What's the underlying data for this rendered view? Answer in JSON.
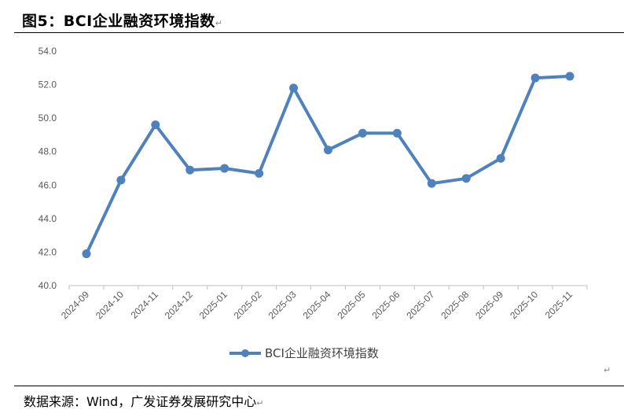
{
  "figure": {
    "title": "图5：BCI企业融资环境指数",
    "source": "数据来源：Wind，广发证券发展研究中心"
  },
  "chart_data": {
    "type": "line",
    "title": "",
    "xlabel": "",
    "ylabel": "",
    "categories": [
      "2024-09",
      "2024-10",
      "2024-11",
      "2024-12",
      "2025-01",
      "2025-02",
      "2025-03",
      "2025-04",
      "2025-05",
      "2025-06",
      "2025-07",
      "2025-08",
      "2025-09",
      "2025-10",
      "2025-11"
    ],
    "series": [
      {
        "name": "BCI企业融资环境指数",
        "color": "#4f81bd",
        "values": [
          41.9,
          46.3,
          49.6,
          46.9,
          47.0,
          46.7,
          51.8,
          48.1,
          49.1,
          49.1,
          46.1,
          46.4,
          47.6,
          52.4,
          52.5
        ]
      }
    ],
    "ylim": [
      40.0,
      54.0
    ],
    "yticks": [
      "40.0",
      "42.0",
      "44.0",
      "46.0",
      "48.0",
      "50.0",
      "52.0",
      "54.0"
    ],
    "grid": false,
    "legend": "bottom-center"
  }
}
